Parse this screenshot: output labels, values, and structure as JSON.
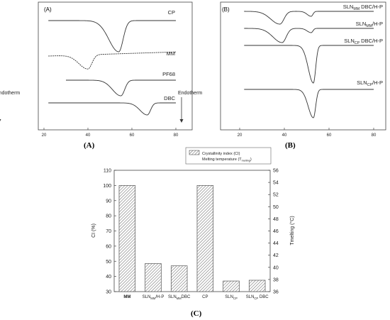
{
  "panel_labels": {
    "a": "(A)",
    "b": "(B)",
    "c": "(C)"
  },
  "chart_data": [
    {
      "type": "line",
      "panel": "(A)",
      "ylabel": "Endotherm",
      "x_ticks": [
        "20",
        "40",
        "60",
        "80"
      ],
      "xlim": [
        20,
        80
      ],
      "series": [
        {
          "name": "CP",
          "peak_temperature": 54
        },
        {
          "name": "MM",
          "peak_temperature": 40
        },
        {
          "name": "PF68",
          "peak_temperature": 55
        },
        {
          "name": "DBC",
          "peak_temperature": 67
        }
      ]
    },
    {
      "type": "line",
      "panel": "(B)",
      "ylabel": "Endotherm",
      "x_ticks": [
        "20",
        "40",
        "60",
        "80"
      ],
      "xlim": [
        20,
        80
      ],
      "series": [
        {
          "name": "SLN_MM DBC/H-P",
          "label_main": "SLN",
          "label_sub": "MM",
          "label_rest": " DBC/H-P",
          "peak_temperatures": [
            38,
            52
          ]
        },
        {
          "name": "SLN_MM/H-P",
          "label_main": "SLN",
          "label_sub": "MM",
          "label_rest": "/H-P",
          "peak_temperatures": [
            39,
            52
          ]
        },
        {
          "name": "SLN_CP DBC/H-P",
          "label_main": "SLN",
          "label_sub": "CP",
          "label_rest": " DBC/H-P",
          "peak_temperatures": [
            53
          ]
        },
        {
          "name": "SLN_CP/H-P",
          "label_main": "SLN",
          "label_sub": "CP",
          "label_rest": "/H-P",
          "peak_temperatures": [
            53
          ]
        }
      ]
    },
    {
      "type": "bar",
      "panel": "(C)",
      "ylabel": "CI (%)",
      "y2label": "Tmelting (°C)",
      "ylim": [
        30,
        110
      ],
      "y2lim": [
        36,
        56
      ],
      "y_ticks": [
        "30",
        "40",
        "50",
        "60",
        "70",
        "80",
        "90",
        "100",
        "110"
      ],
      "y2_ticks": [
        "36",
        "38",
        "40",
        "42",
        "44",
        "46",
        "48",
        "50",
        "52",
        "54",
        "56"
      ],
      "legend": {
        "position": "top-right",
        "items": [
          "Crystallinity index (CI)",
          "Melting temperature (T"
        ],
        "item2_sub": "melting",
        "item2_tail": ")"
      },
      "categories": [
        {
          "main": "MM",
          "sub": "",
          "rest": ""
        },
        {
          "main": "SLN",
          "sub": "MM",
          "rest": "/H-P"
        },
        {
          "main": "SLN",
          "sub": "MM",
          "rest": "DBC"
        },
        {
          "main": "CP",
          "sub": "",
          "rest": ""
        },
        {
          "main": "SLN",
          "sub": "CP",
          "rest": ""
        },
        {
          "main": "SLN",
          "sub": "CP",
          "rest": " DBC"
        }
      ],
      "series": [
        {
          "name": "Crystallinity index (CI)",
          "values": [
            100,
            48.5,
            47,
            100,
            37,
            37.5
          ]
        }
      ]
    }
  ]
}
